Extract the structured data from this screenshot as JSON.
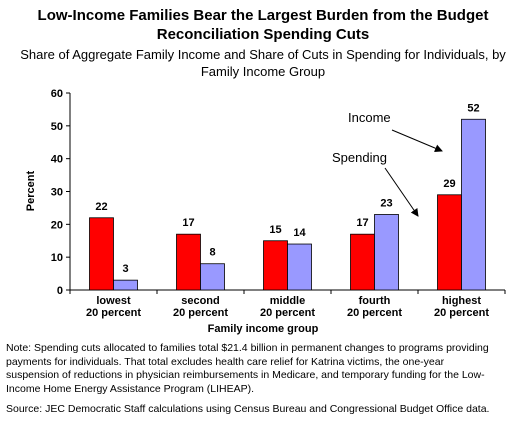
{
  "chart_data": {
    "type": "bar",
    "title": "Low-Income Families Bear the Largest Burden from the Budget\nReconciliation Spending Cuts",
    "subtitle": "Share of Aggregate Family Income and Share of Cuts in Spending for Individuals, by\nFamily Income Group",
    "y_label": "Percent",
    "x_label": "Family income group",
    "categories": [
      "lowest\n20 percent",
      "second\n20 percent",
      "middle\n20 percent",
      "fourth\n20 percent",
      "highest\n20 percent"
    ],
    "series": [
      {
        "name": "Spending",
        "color": "#ff0000",
        "values": [
          22,
          17,
          15,
          17,
          29
        ]
      },
      {
        "name": "Income",
        "color": "#9999ff",
        "values": [
          3,
          8,
          14,
          23,
          52
        ]
      }
    ],
    "ylim": [
      0,
      60
    ],
    "yticks": [
      0,
      10,
      20,
      30,
      40,
      50,
      60
    ],
    "grid": false,
    "note": "Note: Spending cuts allocated to families total $21.4 billion in permanent changes to programs providing\npayments for individuals.  That total excludes health care relief for Katrina victims, the one-year\nsuspension of reductions in physician reimbursements in Medicare, and temporary funding for the Low-\nIncome Home Energy Assistance Program (LIHEAP).",
    "source": "Source: JEC Democratic Staff calculations using Census Bureau and Congressional Budget Office data."
  }
}
